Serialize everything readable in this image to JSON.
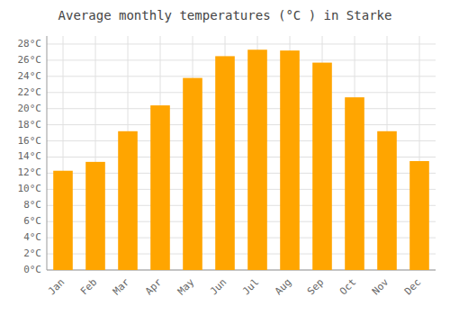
{
  "chart_data": {
    "type": "bar",
    "title": "Average monthly temperatures (°C ) in Starke",
    "categories": [
      "Jan",
      "Feb",
      "Mar",
      "Apr",
      "May",
      "Jun",
      "Jul",
      "Aug",
      "Sep",
      "Oct",
      "Nov",
      "Dec"
    ],
    "values": [
      12.3,
      13.4,
      17.2,
      20.4,
      23.8,
      26.5,
      27.3,
      27.2,
      25.7,
      21.4,
      17.2,
      13.5
    ],
    "color": "#FFA500",
    "ylim": [
      0,
      29
    ],
    "yticks": [
      {
        "value": 0,
        "label": "0°C"
      },
      {
        "value": 2,
        "label": "2°C"
      },
      {
        "value": 4,
        "label": "4°C"
      },
      {
        "value": 6,
        "label": "6°C"
      },
      {
        "value": 8,
        "label": "8°C"
      },
      {
        "value": 10,
        "label": "10°C"
      },
      {
        "value": 12,
        "label": "12°C"
      },
      {
        "value": 14,
        "label": "14°C"
      },
      {
        "value": 16,
        "label": "16°C"
      },
      {
        "value": 18,
        "label": "18°C"
      },
      {
        "value": 20,
        "label": "20°C"
      },
      {
        "value": 22,
        "label": "22°C"
      },
      {
        "value": 24,
        "label": "24°C"
      },
      {
        "value": 26,
        "label": "26°C"
      },
      {
        "value": 28,
        "label": "28°C"
      }
    ],
    "grid": true
  }
}
